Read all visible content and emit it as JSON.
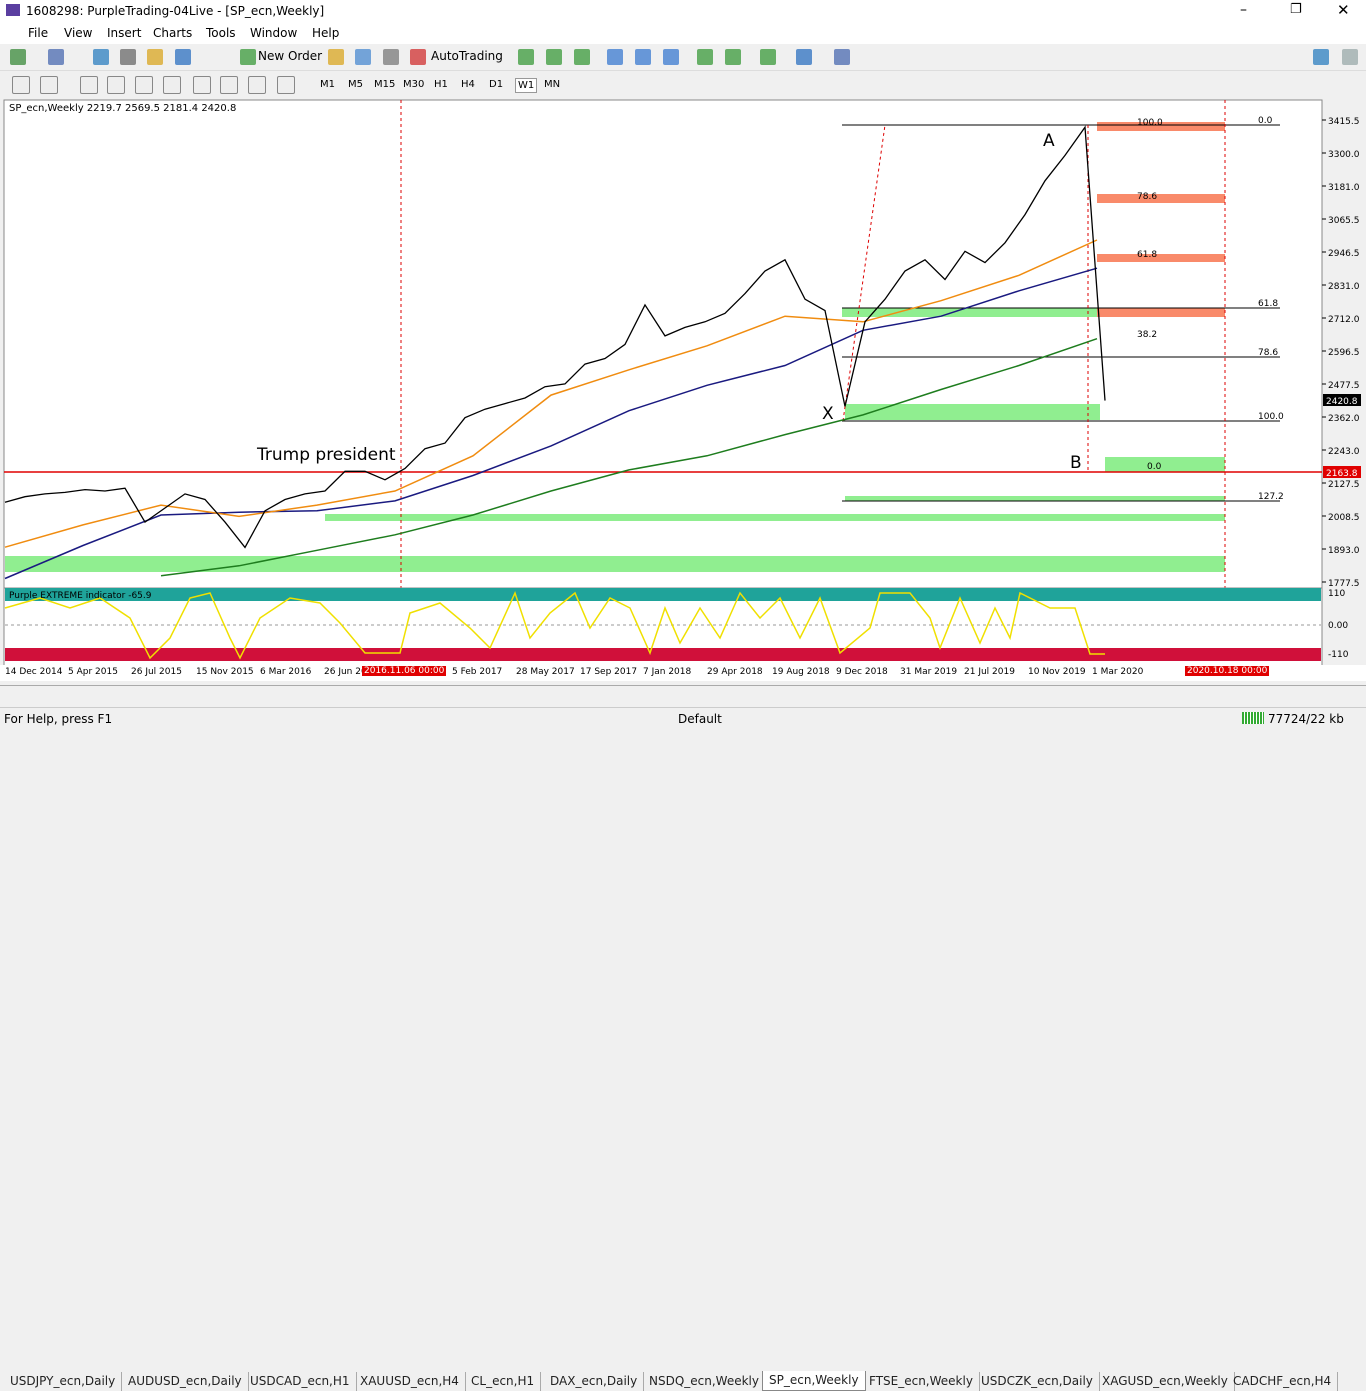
{
  "window_title": "1608298: PurpleTrading-04Live - [SP_ecn,Weekly]",
  "menu": [
    "File",
    "View",
    "Insert",
    "Charts",
    "Tools",
    "Window",
    "Help"
  ],
  "toolbar": {
    "new_order": "New Order",
    "autotrading": "AutoTrading"
  },
  "timeframes": [
    "M1",
    "M5",
    "M15",
    "M30",
    "H1",
    "H4",
    "D1",
    "W1",
    "MN"
  ],
  "chart": {
    "header": "SP_ecn,Weekly  2219.7 2569.5 2181.4 2420.8",
    "price_labels": [
      "3415.5",
      "3300.0",
      "3181.0",
      "3065.5",
      "2946.5",
      "2831.0",
      "2712.0",
      "2596.5",
      "2477.5",
      "2362.0",
      "2243.0",
      "2127.5",
      "2008.5",
      "1893.0",
      "1777.5"
    ],
    "current_price": "2420.8",
    "level_price": "2163.8",
    "annotations": {
      "trump": "Trump president",
      "a": "A",
      "b": "B",
      "x": "X"
    },
    "fib_right": [
      "0.0",
      "61.8",
      "78.6",
      "100.0",
      "127.2"
    ],
    "fib_box": [
      "100.0",
      "78.6",
      "61.8",
      "38.2",
      "0.0"
    ],
    "closes": [
      2060,
      2080,
      2090,
      2095,
      2105,
      2100,
      2110,
      1990,
      2040,
      2090,
      2070,
      1990,
      1900,
      2030,
      2070,
      2090,
      2100,
      2170,
      2170,
      2140,
      2180,
      2250,
      2270,
      2360,
      2390,
      2410,
      2430,
      2470,
      2480,
      2550,
      2570,
      2620,
      2760,
      2650,
      2680,
      2700,
      2730,
      2800,
      2880,
      2920,
      2780,
      2740,
      2400,
      2700,
      2780,
      2880,
      2920,
      2850,
      2950,
      2910,
      2980,
      3080,
      3200,
      3290,
      3390,
      2420.8
    ],
    "ma_fast": [
      1901,
      1980,
      2050,
      2010,
      2050,
      2100,
      2225,
      2440,
      2530,
      2615,
      2720,
      2700,
      2775,
      2865,
      2990
    ],
    "ma_mid": [
      1790,
      1907,
      2015,
      2025,
      2030,
      2065,
      2155,
      2260,
      2385,
      2475,
      2545,
      2670,
      2720,
      2810,
      2890
    ],
    "ma_slow": [
      null,
      null,
      1800,
      1835,
      1890,
      1945,
      2015,
      2100,
      2175,
      2225,
      2300,
      2370,
      2460,
      2545,
      2640
    ],
    "dates": [
      "14 Dec 2014",
      "5 Apr 2015",
      "26 Jul 2015",
      "15 Nov 2015",
      "6 Mar 2016",
      "26 Jun 2016",
      "5 Feb 2017",
      "28 May 2017",
      "17 Sep 2017",
      "7 Jan 2018",
      "29 Apr 2018",
      "19 Aug 2018",
      "9 Dec 2018",
      "31 Mar 2019",
      "21 Jul 2019",
      "10 Nov 2019",
      "1 Mar 2020"
    ],
    "date_highlights": [
      "2016.11.06 00:00",
      "2020.10.18 00:00"
    ]
  },
  "indicator": {
    "label": "Purple EXTREME indicator -65.9",
    "levels": [
      "110",
      "0.00",
      "-110"
    ]
  },
  "tabs": [
    "USDJPY_ecn,Daily",
    "AUDUSD_ecn,Daily",
    "USDCAD_ecn,H1",
    "XAUUSD_ecn,H4",
    "CL_ecn,H1",
    "DAX_ecn,Daily",
    "NSDQ_ecn,Weekly",
    "SP_ecn,Weekly",
    "FTSE_ecn,Weekly",
    "USDCZK_ecn,Daily",
    "XAGUSD_ecn,Weekly",
    "CADCHF_ecn,H4"
  ],
  "status": {
    "help": "For Help, press F1",
    "profile": "Default",
    "traffic": "77724/22 kb"
  }
}
